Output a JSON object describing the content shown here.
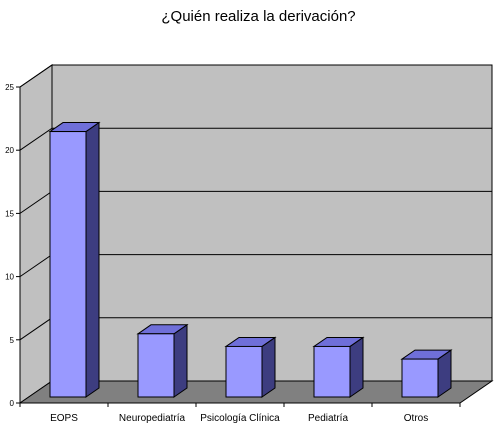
{
  "chart_data": {
    "type": "bar",
    "title": "¿Quién realiza la derivación?",
    "categories": [
      "EOPS",
      "Neuropediatría",
      "Psicología Clínica",
      "Pediatría",
      "Otros"
    ],
    "values": [
      21,
      5,
      4,
      4,
      3
    ],
    "y_ticks": [
      "0",
      "5",
      "10",
      "15",
      "20",
      "25"
    ],
    "xlabel": "",
    "ylabel": "",
    "ylim": [
      0,
      25
    ],
    "grid": true,
    "legend": "none",
    "colors": {
      "bar_front": "#9999ff",
      "bar_side": "#3d3d80",
      "bar_top": "#6f6fd9",
      "wall": "#c0c0c0",
      "side_wall": "#c0c0c0",
      "floor": "#808080",
      "grid": "#000000"
    }
  }
}
